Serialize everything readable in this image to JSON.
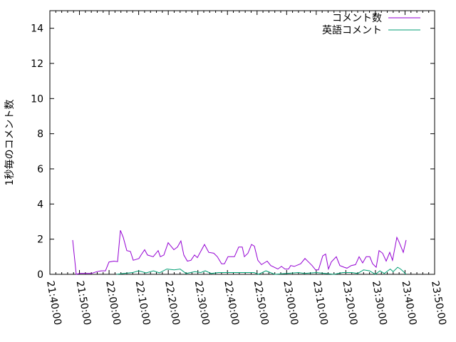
{
  "chart_data": {
    "type": "line",
    "title": "",
    "xlabel": "",
    "ylabel": "1秒毎のコメント数",
    "xlim": [
      "21:40:00",
      "23:50:00"
    ],
    "ylim": [
      0,
      15
    ],
    "x_tick_labels": [
      "21:40:00",
      "21:50:00",
      "22:00:00",
      "22:10:00",
      "22:20:00",
      "22:30:00",
      "22:40:00",
      "22:50:00",
      "23:00:00",
      "23:10:00",
      "23:20:00",
      "23:30:00",
      "23:40:00",
      "23:50:00"
    ],
    "y_tick_labels": [
      "0",
      "2",
      "4",
      "6",
      "8",
      "10",
      "12",
      "14"
    ],
    "grid": false,
    "legend_position": "top-right",
    "series": [
      {
        "name": "コメント数",
        "color": "#9400d3",
        "points": [
          [
            "21:47:42",
            1.95
          ],
          [
            "21:48:55",
            0
          ],
          [
            "21:50:07",
            0.05
          ],
          [
            "21:52:02",
            0.05
          ],
          [
            "21:53:58",
            0.05
          ],
          [
            "21:55:53",
            0.15
          ],
          [
            "21:57:20",
            0.2
          ],
          [
            "21:58:47",
            0.2
          ],
          [
            "21:59:59",
            0.7
          ],
          [
            "22:01:40",
            0.75
          ],
          [
            "22:02:52",
            0.72
          ],
          [
            "22:03:50",
            2.5
          ],
          [
            "22:04:48",
            2.1
          ],
          [
            "22:06:00",
            1.35
          ],
          [
            "22:07:12",
            1.3
          ],
          [
            "22:08:10",
            0.8
          ],
          [
            "22:10:05",
            0.9
          ],
          [
            "22:10:49",
            1.1
          ],
          [
            "22:12:01",
            1.4
          ],
          [
            "22:12:59",
            1.1
          ],
          [
            "22:14:55",
            1.0
          ],
          [
            "22:16:35",
            1.35
          ],
          [
            "22:17:19",
            1.0
          ],
          [
            "22:18:31",
            1.1
          ],
          [
            "22:19:58",
            1.8
          ],
          [
            "22:20:41",
            1.65
          ],
          [
            "22:21:53",
            1.4
          ],
          [
            "22:23:05",
            1.55
          ],
          [
            "22:24:17",
            1.9
          ],
          [
            "22:25:15",
            1.1
          ],
          [
            "22:26:28",
            0.75
          ],
          [
            "22:27:40",
            0.8
          ],
          [
            "22:28:52",
            1.1
          ],
          [
            "22:29:50",
            0.95
          ],
          [
            "22:32:14",
            1.7
          ],
          [
            "22:33:41",
            1.25
          ],
          [
            "22:35:22",
            1.2
          ],
          [
            "22:36:34",
            1.0
          ],
          [
            "22:38:01",
            0.6
          ],
          [
            "22:38:59",
            0.6
          ],
          [
            "22:40:11",
            1.0
          ],
          [
            "22:42:21",
            1.0
          ],
          [
            "22:43:48",
            1.55
          ],
          [
            "22:45:00",
            1.55
          ],
          [
            "22:45:43",
            1.0
          ],
          [
            "22:46:55",
            1.2
          ],
          [
            "22:48:08",
            1.7
          ],
          [
            "22:49:05",
            1.6
          ],
          [
            "22:50:17",
            0.8
          ],
          [
            "22:51:30",
            0.55
          ],
          [
            "22:53:25",
            0.75
          ],
          [
            "22:54:38",
            0.5
          ],
          [
            "22:57:02",
            0.3
          ],
          [
            "22:58:14",
            0.45
          ],
          [
            "22:59:26",
            0.3
          ],
          [
            "23:00:39",
            0.3
          ],
          [
            "23:01:22",
            0.5
          ],
          [
            "23:02:34",
            0.45
          ],
          [
            "23:04:44",
            0.6
          ],
          [
            "23:06:11",
            0.9
          ],
          [
            "23:07:23",
            0.7
          ],
          [
            "23:08:35",
            0.5
          ],
          [
            "23:09:47",
            0.25
          ],
          [
            "23:10:45",
            0.25
          ],
          [
            "23:12:12",
            1.05
          ],
          [
            "23:13:10",
            1.15
          ],
          [
            "23:14:08",
            0.3
          ],
          [
            "23:15:05",
            0.7
          ],
          [
            "23:16:46",
            1.0
          ],
          [
            "23:17:59",
            0.5
          ],
          [
            "23:19:25",
            0.4
          ],
          [
            "23:20:23",
            0.35
          ],
          [
            "23:21:50",
            0.5
          ],
          [
            "23:23:16",
            0.55
          ],
          [
            "23:24:29",
            1.0
          ],
          [
            "23:25:41",
            0.65
          ],
          [
            "23:26:53",
            1.0
          ],
          [
            "23:28:05",
            1.0
          ],
          [
            "23:29:03",
            0.6
          ],
          [
            "23:30:16",
            0.4
          ],
          [
            "23:31:13",
            1.35
          ],
          [
            "23:32:25",
            1.2
          ],
          [
            "23:33:38",
            0.75
          ],
          [
            "23:34:50",
            1.25
          ],
          [
            "23:35:47",
            0.8
          ],
          [
            "23:37:14",
            2.1
          ],
          [
            "23:37:58",
            1.85
          ],
          [
            "23:39:24",
            1.25
          ],
          [
            "23:40:22",
            1.95
          ]
        ]
      },
      {
        "name": "英語コメント",
        "color": "#009e73",
        "points": [
          [
            "22:02:30",
            0
          ],
          [
            "22:05:00",
            0.05
          ],
          [
            "22:08:00",
            0.1
          ],
          [
            "22:10:00",
            0.2
          ],
          [
            "22:12:30",
            0.08
          ],
          [
            "22:15:00",
            0.2
          ],
          [
            "22:17:00",
            0.08
          ],
          [
            "22:19:30",
            0.3
          ],
          [
            "22:22:00",
            0.25
          ],
          [
            "22:24:00",
            0.3
          ],
          [
            "22:26:00",
            0.05
          ],
          [
            "22:29:00",
            0.15
          ],
          [
            "22:31:00",
            0.1
          ],
          [
            "22:32:30",
            0.2
          ],
          [
            "22:34:30",
            0.05
          ],
          [
            "22:37:00",
            0.1
          ],
          [
            "22:40:00",
            0.1
          ],
          [
            "22:45:00",
            0.1
          ],
          [
            "22:49:00",
            0.1
          ],
          [
            "22:50:30",
            0
          ],
          [
            "22:53:00",
            0.2
          ],
          [
            "22:56:00",
            0
          ],
          [
            "23:00:00",
            0.05
          ],
          [
            "23:04:00",
            0.1
          ],
          [
            "23:06:00",
            0.05
          ],
          [
            "23:10:00",
            0.1
          ],
          [
            "23:13:00",
            0.05
          ],
          [
            "23:16:00",
            0
          ],
          [
            "23:19:00",
            0.1
          ],
          [
            "23:22:00",
            0.1
          ],
          [
            "23:24:00",
            0.05
          ],
          [
            "23:26:00",
            0.25
          ],
          [
            "23:28:00",
            0.2
          ],
          [
            "23:30:00",
            0
          ],
          [
            "23:31:30",
            0.2
          ],
          [
            "23:33:00",
            0.05
          ],
          [
            "23:35:00",
            0.3
          ],
          [
            "23:36:00",
            0.15
          ],
          [
            "23:37:30",
            0.4
          ],
          [
            "23:38:30",
            0.3
          ],
          [
            "23:39:30",
            0.15
          ],
          [
            "23:40:20",
            0
          ]
        ]
      }
    ]
  }
}
